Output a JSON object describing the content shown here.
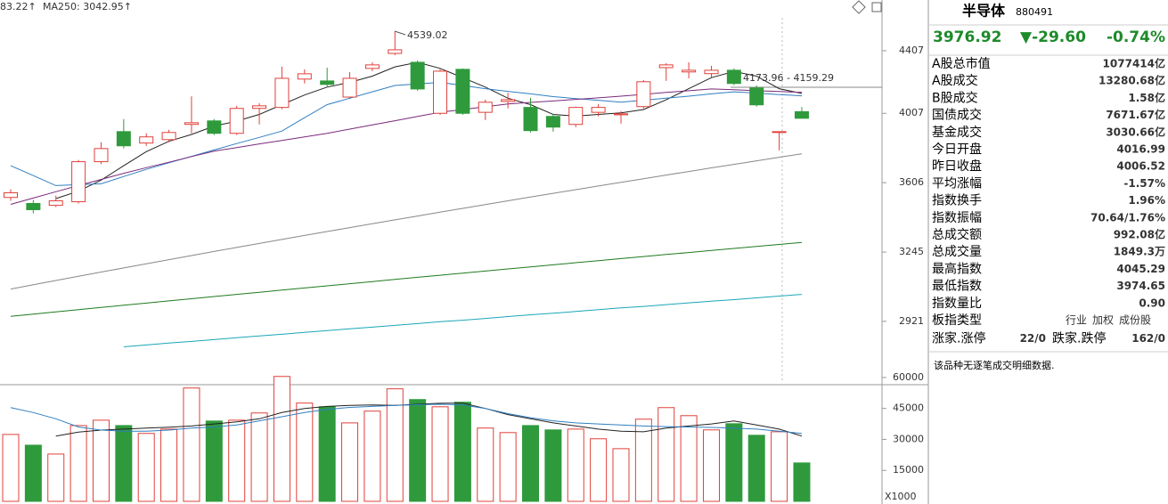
{
  "chart_data": [
    {
      "type": "candlestick",
      "legend": [
        {
          "text": "83.22↑",
          "color": "#2d7d2d"
        },
        {
          "text": "MA250: 3042.95↑",
          "color": "#1aa6b7"
        }
      ],
      "annotations": [
        "4539.02",
        "4173.96 - 4159.29"
      ],
      "categories": [
        null,
        null,
        null,
        null,
        null,
        null,
        null,
        null,
        null,
        null,
        null,
        null,
        null,
        null,
        null,
        null,
        null,
        null,
        null,
        null,
        null,
        null,
        null,
        null,
        null,
        null,
        null,
        null,
        null,
        null,
        null,
        null,
        null,
        null,
        null,
        null
      ],
      "open": [
        3526,
        3494,
        3484,
        3503,
        3723,
        3897,
        3830,
        3850,
        3940,
        3961,
        3887,
        4037,
        4043,
        4221,
        4209,
        4107,
        4290,
        4389,
        4330,
        4007,
        4284,
        4013,
        4080,
        4043,
        3988,
        3940,
        4013,
        3998,
        4048,
        4295,
        4267,
        4256,
        4278,
        4164,
        3892,
        4016.99
      ],
      "high": [
        3570,
        3513,
        3536,
        3733,
        3835,
        3972,
        3887,
        3908,
        4112,
        3972,
        4053,
        4069,
        4301,
        4284,
        4295,
        4266,
        4330,
        4539.02,
        4342,
        4284,
        4290,
        4091,
        4134,
        4102,
        4004,
        4048,
        4064,
        4020,
        4215,
        4324,
        4330,
        4307,
        4290,
        4180,
        3897,
        4045.29
      ],
      "low": [
        3508,
        3442,
        3475,
        3494,
        3709,
        3799,
        3814,
        3835,
        3887,
        3877,
        3877,
        3940,
        4032,
        4193,
        4170,
        4096,
        4272,
        4377,
        4147,
        3998,
        3998,
        3966,
        4037,
        3892,
        3897,
        3924,
        3988,
        3945,
        4037,
        4209,
        4226,
        4232,
        4182,
        4048,
        3788,
        3974.65
      ],
      "close": [
        3551,
        3461,
        3508,
        3723,
        3798,
        3814,
        3866,
        3892,
        3950,
        3887,
        4037,
        4053,
        4226,
        4255,
        4187,
        4226,
        4313,
        4413,
        4158,
        4272,
        4007,
        4075,
        4091,
        3903,
        3924,
        4043,
        4043,
        4004,
        4204,
        4313,
        4278,
        4278,
        4193,
        4059,
        3897,
        3976.92
      ],
      "up_color": "#e0403a",
      "down_color": "#2f9a3c",
      "lines": [
        {
          "color": "#222222",
          "values": [
            null,
            null,
            3520,
            3560,
            3620,
            3700,
            3780,
            3840,
            3880,
            3930,
            3960,
            4000,
            4060,
            4120,
            4170,
            4200,
            4240,
            4300,
            4330,
            4290,
            4230,
            4170,
            4100,
            4060,
            4000,
            3990,
            4000,
            4010,
            4030,
            4090,
            4160,
            4230,
            4270,
            4240,
            4160,
            4130
          ]
        },
        {
          "color": "#2f7fc1",
          "values": [
            3700,
            3645,
            3590,
            3595,
            3600,
            3640,
            3680,
            3717,
            3753,
            3790,
            3827,
            3863,
            3900,
            3980,
            4060,
            4100,
            4140,
            4180,
            4190,
            4200,
            4180,
            4160,
            4143,
            4127,
            4110,
            4098,
            4087,
            4075,
            4088,
            4100,
            4113,
            4127,
            4140,
            4132,
            4123,
            4115
          ]
        },
        {
          "color": "#7a2a7a",
          "values": [
            3489,
            3523,
            3557,
            3590,
            3624,
            3658,
            3689,
            3720,
            3752,
            3783,
            3804,
            3825,
            3845,
            3866,
            3887,
            3912,
            3937,
            3962,
            3988,
            4013,
            4030,
            4047,
            4064,
            4074,
            4083,
            4093,
            4102,
            4113,
            4124,
            4136,
            4147,
            4158,
            4153,
            4147,
            4142,
            4137
          ]
        },
        {
          "color": "#888888",
          "values": [
            3068,
            3088,
            3108,
            3128,
            3148,
            3168,
            3188,
            3208,
            3228,
            3248,
            3268,
            3288,
            3308,
            3328,
            3348,
            3368,
            3388,
            3408,
            3428,
            3448,
            3468,
            3488,
            3508,
            3528,
            3548,
            3568,
            3588,
            3608,
            3628,
            3648,
            3668,
            3688,
            3708,
            3728,
            3748,
            3768
          ]
        },
        {
          "color": "#1f7a1f",
          "values": [
            2943,
            2953,
            2963,
            2973,
            2983,
            2993,
            3003,
            3013,
            3023,
            3033,
            3043,
            3053,
            3063,
            3073,
            3083,
            3093,
            3103,
            3113,
            3123,
            3133,
            3143,
            3153,
            3163,
            3173,
            3183,
            3193,
            3203,
            3213,
            3223,
            3233,
            3243,
            3253,
            3263,
            3273,
            3283,
            3293
          ]
        },
        {
          "color": "#1aa6b7",
          "values": [
            null,
            null,
            null,
            null,
            null,
            2810,
            2818,
            2826,
            2833,
            2841,
            2849,
            2857,
            2864,
            2872,
            2880,
            2888,
            2895,
            2903,
            2911,
            2919,
            2926,
            2934,
            2942,
            2950,
            2957,
            2965,
            2973,
            2981,
            2988,
            2996,
            3004,
            3012,
            3019,
            3027,
            3035,
            3042.95
          ]
        }
      ],
      "ylim": [
        2660,
        4760
      ],
      "yticks": [
        2921,
        3245,
        3606,
        4007,
        4407
      ],
      "log_scale": true
    },
    {
      "type": "bar",
      "categories": [
        null,
        null,
        null,
        null,
        null,
        null,
        null,
        null,
        null,
        null,
        null,
        null,
        null,
        null,
        null,
        null,
        null,
        null,
        null,
        null,
        null,
        null,
        null,
        null,
        null,
        null,
        null,
        null,
        null,
        null,
        null,
        null,
        null,
        null,
        null,
        null
      ],
      "values": [
        32400,
        27200,
        22900,
        36700,
        39300,
        36700,
        32900,
        35000,
        54900,
        38900,
        39300,
        42800,
        60500,
        47600,
        45800,
        38000,
        43700,
        54500,
        49300,
        45800,
        48000,
        35500,
        33300,
        36700,
        34600,
        35000,
        30300,
        25500,
        39800,
        45400,
        41500,
        34600,
        37600,
        32000,
        33700,
        18600
      ],
      "lines": [
        {
          "color": "#222222",
          "values": [
            null,
            null,
            31600,
            33500,
            34500,
            35000,
            35500,
            35900,
            36500,
            37500,
            38500,
            40000,
            43000,
            45000,
            46000,
            46500,
            46700,
            46500,
            47000,
            47500,
            47600,
            45000,
            42000,
            40000,
            38000,
            36500,
            35000,
            34000,
            33700,
            35500,
            36500,
            37500,
            38900,
            37000,
            35000,
            31600
          ]
        },
        {
          "color": "#2f7fc1",
          "values": [
            45400,
            43000,
            40000,
            36000,
            34500,
            34000,
            34000,
            34500,
            35500,
            36000,
            37000,
            39000,
            41000,
            43000,
            44500,
            45500,
            46000,
            46500,
            46800,
            47000,
            46700,
            45000,
            42500,
            40500,
            39000,
            38000,
            37500,
            37000,
            36500,
            36200,
            36000,
            35800,
            35500,
            35000,
            34000,
            32900
          ]
        }
      ],
      "unit": "X1000",
      "ylim": [
        0,
        66000
      ],
      "yticks": [
        15000,
        30000,
        45000,
        60000
      ]
    }
  ],
  "panel": {
    "name": "半导体",
    "code": "880491",
    "price": "3976.92",
    "change": "▼-29.60",
    "change_pct": "-0.74%",
    "rows": [
      {
        "label": "A股总市值",
        "value": "1077414亿",
        "color": "#000000"
      },
      {
        "label": "A股成交",
        "value": "13280.68亿",
        "color": "#000000"
      },
      {
        "label": "B股成交",
        "value": "1.58亿",
        "color": "#000000"
      },
      {
        "label": "国债成交",
        "value": "7671.67亿",
        "color": "#000000"
      },
      {
        "label": "基金成交",
        "value": "3030.66亿",
        "color": "#000000"
      },
      {
        "label": "今日开盘",
        "value": "4016.99",
        "color": "#d42b2b"
      },
      {
        "label": "昨日收盘",
        "value": "4006.52",
        "color": "#000000"
      },
      {
        "label": "平均涨幅",
        "value": "-1.57%",
        "color": "#1e8a2a"
      },
      {
        "label": "指数换手",
        "value": "1.96%",
        "color": "#000000"
      },
      {
        "label": "指数振幅",
        "value": "70.64/1.76%",
        "color": "#000000"
      },
      {
        "label": "总成交额",
        "value": "992.08亿",
        "color": "#000000"
      },
      {
        "label": "总成交量",
        "value": "1849.3万",
        "color": "#000000"
      },
      {
        "label": "最高指数",
        "value": "4045.29",
        "color": "#d42b2b"
      },
      {
        "label": "最低指数",
        "value": "3974.65",
        "color": "#1e8a2a"
      },
      {
        "label": "指数量比",
        "value": "0.90",
        "color": "#1e8a2a"
      }
    ],
    "board_type": {
      "label": "板指类型",
      "values": [
        "行业",
        "加权",
        "成份股"
      ]
    },
    "breadth": [
      {
        "label": "涨家.涨停",
        "value": "22/0",
        "color": "#d42b2b"
      },
      {
        "label": "跌家.跌停",
        "value": "162/0",
        "color": "#1e8a2a"
      }
    ],
    "note": "该品种无逐笔成交明细数据."
  }
}
